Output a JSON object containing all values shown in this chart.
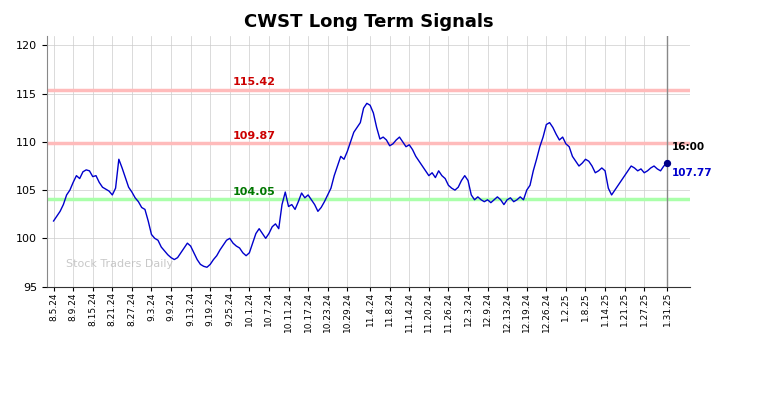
{
  "title": "CWST Long Term Signals",
  "title_fontsize": 13,
  "title_fontweight": "bold",
  "ylim": [
    95,
    121
  ],
  "yticks": [
    95,
    100,
    105,
    110,
    115,
    120
  ],
  "hline_upper": 115.42,
  "hline_mid": 109.87,
  "hline_lower": 104.05,
  "hline_upper_color": "#ffbbbb",
  "hline_mid_color": "#ffbbbb",
  "hline_lower_color": "#aaffaa",
  "label_upper": "115.42",
  "label_mid": "109.87",
  "label_lower": "104.05",
  "label_upper_color": "#cc0000",
  "label_mid_color": "#cc0000",
  "label_lower_color": "#007700",
  "last_price": 107.77,
  "last_time_label": "16:00",
  "watermark": "Stock Traders Daily",
  "line_color": "#0000cc",
  "last_dot_color": "#000088",
  "vline_color": "#888888",
  "bg_color": "#ffffff",
  "grid_color": "#cccccc",
  "x_labels": [
    "8.5.24",
    "8.9.24",
    "8.15.24",
    "8.21.24",
    "8.27.24",
    "9.3.24",
    "9.9.24",
    "9.13.24",
    "9.19.24",
    "9.25.24",
    "10.1.24",
    "10.7.24",
    "10.11.24",
    "10.17.24",
    "10.23.24",
    "10.29.24",
    "11.4.24",
    "11.8.24",
    "11.14.24",
    "11.20.24",
    "11.26.24",
    "12.3.24",
    "12.9.24",
    "12.13.24",
    "12.19.24",
    "12.26.24",
    "1.2.25",
    "1.8.25",
    "1.14.25",
    "1.21.25",
    "1.27.25",
    "1.31.25"
  ],
  "prices": [
    101.8,
    102.3,
    102.8,
    103.5,
    104.5,
    105.0,
    105.8,
    106.5,
    106.2,
    106.9,
    107.1,
    107.0,
    106.4,
    106.5,
    105.8,
    105.3,
    105.1,
    104.9,
    104.5,
    105.2,
    108.2,
    107.3,
    106.3,
    105.3,
    104.8,
    104.2,
    103.8,
    103.2,
    103.0,
    101.8,
    100.4,
    100.0,
    99.8,
    99.1,
    98.7,
    98.3,
    98.0,
    97.8,
    98.0,
    98.5,
    99.0,
    99.5,
    99.2,
    98.5,
    97.8,
    97.3,
    97.1,
    97.0,
    97.3,
    97.8,
    98.2,
    98.8,
    99.3,
    99.8,
    100.0,
    99.5,
    99.2,
    99.0,
    98.5,
    98.2,
    98.5,
    99.5,
    100.5,
    101.0,
    100.5,
    100.0,
    100.5,
    101.2,
    101.5,
    101.0,
    103.5,
    104.8,
    103.3,
    103.5,
    103.0,
    103.8,
    104.7,
    104.2,
    104.5,
    104.0,
    103.5,
    102.8,
    103.2,
    103.8,
    104.5,
    105.2,
    106.5,
    107.5,
    108.5,
    108.2,
    109.0,
    110.0,
    111.0,
    111.5,
    112.0,
    113.5,
    114.0,
    113.8,
    113.0,
    111.5,
    110.3,
    110.5,
    110.2,
    109.6,
    109.8,
    110.2,
    110.5,
    110.0,
    109.5,
    109.7,
    109.2,
    108.5,
    108.0,
    107.5,
    107.0,
    106.5,
    106.8,
    106.3,
    107.0,
    106.5,
    106.2,
    105.5,
    105.2,
    105.0,
    105.3,
    106.0,
    106.5,
    106.0,
    104.5,
    104.0,
    104.3,
    104.0,
    103.8,
    104.0,
    103.7,
    104.0,
    104.3,
    104.0,
    103.5,
    104.0,
    104.2,
    103.8,
    104.0,
    104.3,
    104.0,
    105.0,
    105.5,
    107.0,
    108.2,
    109.5,
    110.5,
    111.8,
    112.0,
    111.5,
    110.8,
    110.2,
    110.5,
    109.8,
    109.5,
    108.5,
    108.0,
    107.5,
    107.8,
    108.2,
    108.0,
    107.5,
    106.8,
    107.0,
    107.3,
    107.0,
    105.2,
    104.5,
    105.0,
    105.5,
    106.0,
    106.5,
    107.0,
    107.5,
    107.3,
    107.0,
    107.2,
    106.8,
    107.0,
    107.3,
    107.5,
    107.2,
    107.0,
    107.5,
    107.77
  ]
}
